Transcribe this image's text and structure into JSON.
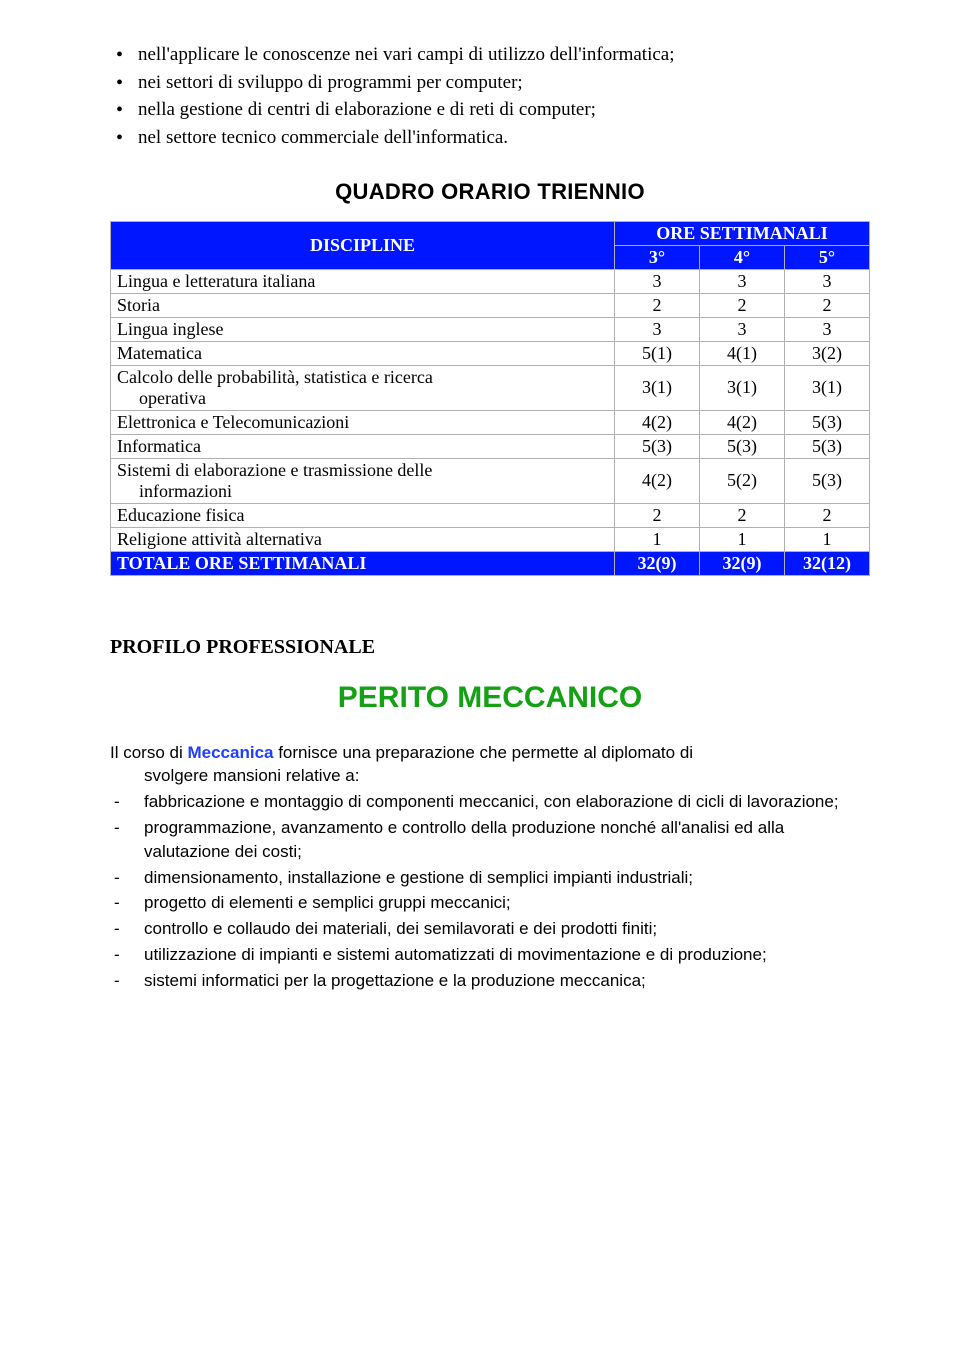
{
  "top_bullets": [
    "nell'applicare le conoscenze nei vari campi di utilizzo dell'informatica;",
    "nei settori di sviluppo di programmi per computer;",
    "nella gestione di centri di elaborazione e di reti di computer;",
    "nel settore tecnico commerciale dell'informatica."
  ],
  "table": {
    "title": "QUADRO ORARIO TRIENNIO",
    "discipline_header": "DISCIPLINE",
    "ore_header": "ORE SETTIMANALI",
    "year_headers": [
      "3°",
      "4°",
      "5°"
    ],
    "header_bg": "#0016ff",
    "header_fg": "#ffffff",
    "rows": [
      {
        "label": "Lingua e letteratura italiana",
        "vals": [
          "3",
          "3",
          "3"
        ]
      },
      {
        "label": "Storia",
        "vals": [
          "2",
          "2",
          "2"
        ]
      },
      {
        "label": "Lingua inglese",
        "vals": [
          "3",
          "3",
          "3"
        ]
      },
      {
        "label": "Matematica",
        "vals": [
          "5(1)",
          "4(1)",
          "3(2)"
        ]
      },
      {
        "label": "Calcolo delle probabilità, statistica e ricerca",
        "label2": "operativa",
        "vals": [
          "3(1)",
          "3(1)",
          "3(1)"
        ]
      },
      {
        "label": "Elettronica e Telecomunicazioni",
        "vals": [
          "4(2)",
          "4(2)",
          "5(3)"
        ]
      },
      {
        "label": "Informatica",
        "vals": [
          "5(3)",
          "5(3)",
          "5(3)"
        ]
      },
      {
        "label": "Sistemi di elaborazione e trasmissione delle",
        "label2": "informazioni",
        "vals": [
          "4(2)",
          "5(2)",
          "5(3)"
        ]
      },
      {
        "label": "Educazione fisica",
        "vals": [
          "2",
          "2",
          "2"
        ]
      },
      {
        "label": "Religione attività alternativa",
        "vals": [
          "1",
          "1",
          "1"
        ]
      }
    ],
    "total": {
      "label": "TOTALE ORE  SETTIMANALI",
      "vals": [
        "32(9)",
        "32(9)",
        "32(12)"
      ]
    }
  },
  "profile_heading": "PROFILO PROFESSIONALE",
  "green_title": "PERITO MECCANICO",
  "intro": {
    "prefix": "Il corso di ",
    "emphasis": "Meccanica",
    "rest_line1": " fornisce una preparazione che permette al diplomato    di",
    "line2": "svolgere mansioni relative a:"
  },
  "dash_items": [
    "fabbricazione e montaggio di componenti meccanici, con elaborazione di cicli di lavorazione;",
    "programmazione, avanzamento e controllo della produzione nonché all'analisi ed alla valutazione dei costi;",
    "dimensionamento, installazione e gestione di semplici impianti industriali;",
    "progetto di elementi e semplici gruppi meccanici;",
    "controllo e collaudo dei materiali, dei semilavorati e dei prodotti finiti;",
    "utilizzazione di impianti e sistemi automatizzati di movimentazione e di produzione;",
    "sistemi informatici per la progettazione e la produzione meccanica;"
  ]
}
